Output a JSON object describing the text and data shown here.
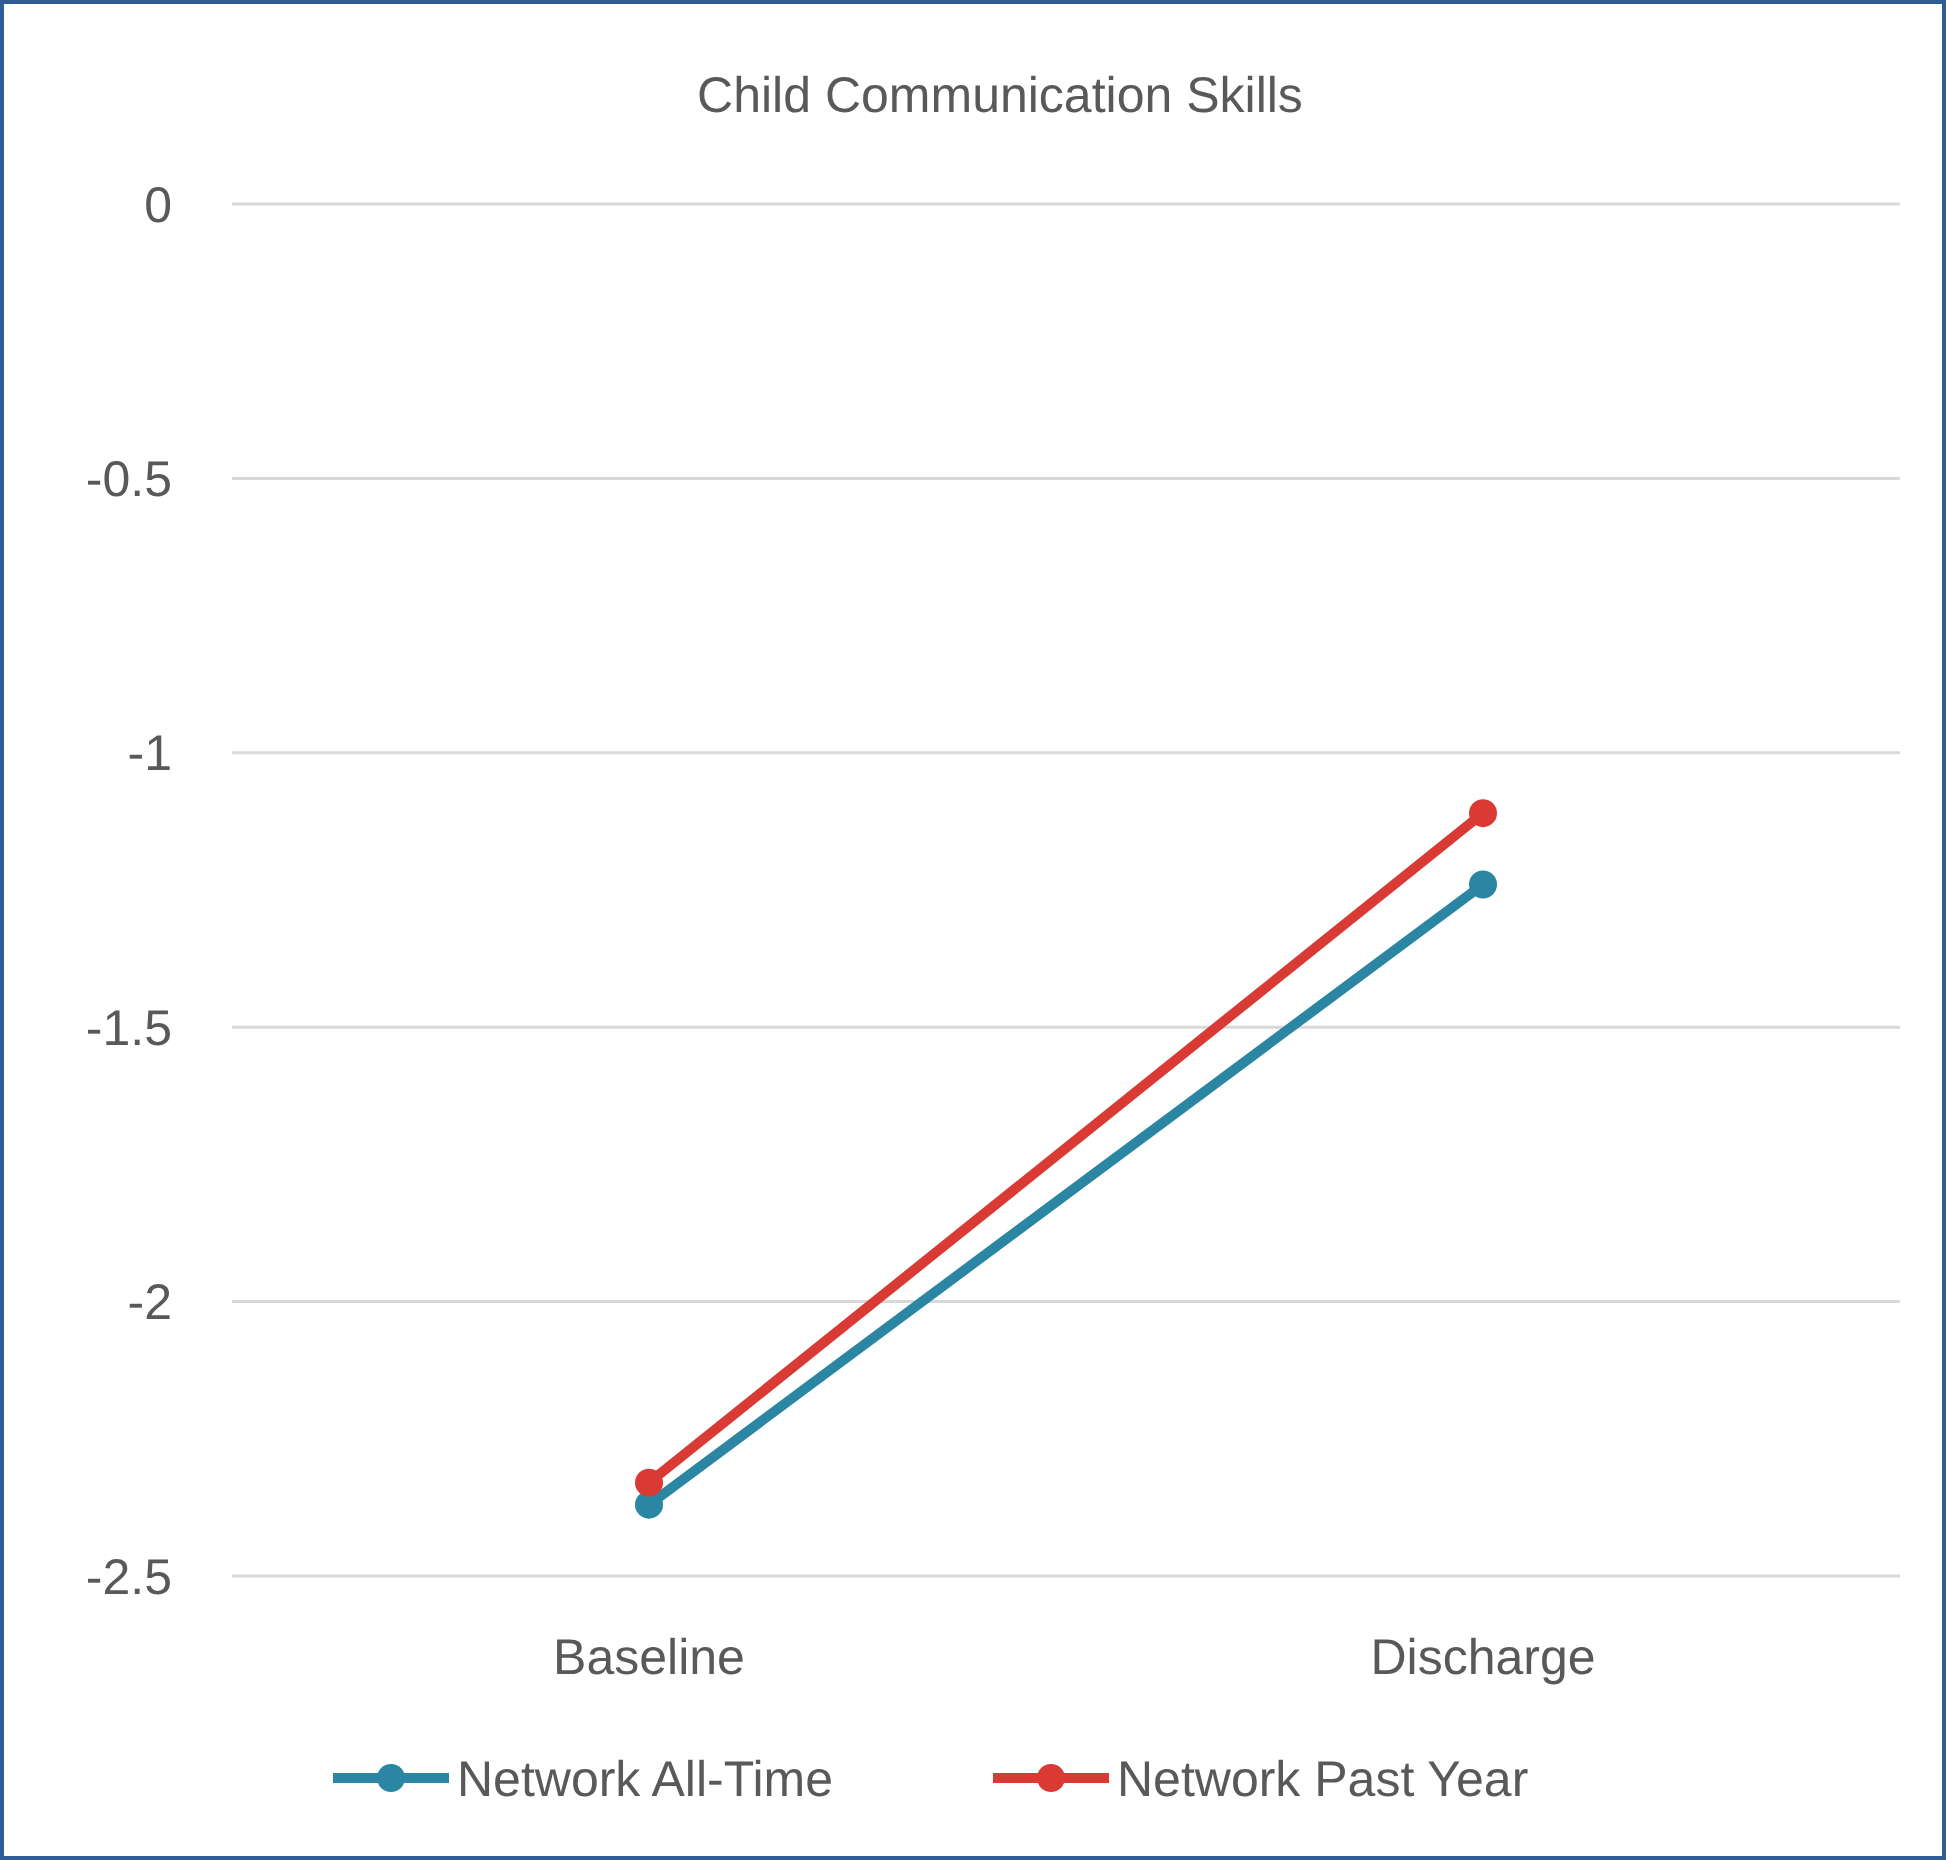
{
  "chart_data": {
    "type": "line",
    "title": "Child Communication Skills",
    "categories": [
      "Baseline",
      "Discharge"
    ],
    "series": [
      {
        "name": "Network All-Time",
        "color": "#2b86a3",
        "values": [
          -2.37,
          -1.24
        ]
      },
      {
        "name": "Network Past Year",
        "color": "#d93a34",
        "values": [
          -2.33,
          -1.11
        ]
      }
    ],
    "ylim": [
      -2.5,
      0
    ],
    "yticks": [
      0,
      -0.5,
      -1,
      -1.5,
      -2,
      -2.5
    ],
    "grid": "y",
    "legend": "bottom",
    "marker": "circle",
    "line_style": "solid"
  }
}
